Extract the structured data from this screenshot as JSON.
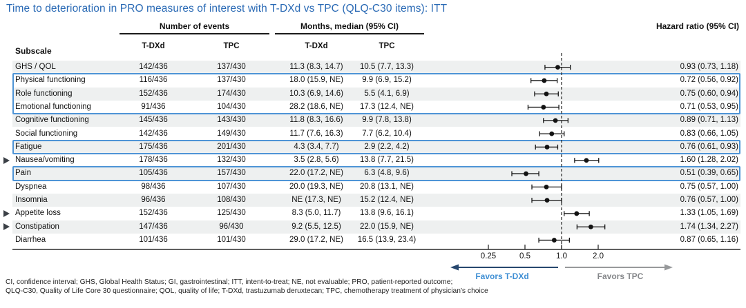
{
  "title": "Time to deterioration in PRO measures of interest with T-DXd vs TPC (QLQ-C30 items): ITT",
  "table": {
    "group_headers": {
      "events": "Number of events",
      "months": "Months, median (95% CI)",
      "hr": "Hazard ratio (95% CI)"
    },
    "subscale_header": "Subscale",
    "col_subheaders": [
      "T-DXd",
      "TPC",
      "T-DXd",
      "TPC"
    ],
    "rows": [
      {
        "name": "GHS / QOL",
        "events_tdxd": "142/436",
        "events_tpc": "137/430",
        "months_tdxd": "11.3 (8.3, 14.7)",
        "months_tpc": "10.5 (7.7, 13.3)",
        "hr_text": "0.93 (0.73, 1.18)",
        "flag": false
      },
      {
        "name": "Physical functioning",
        "events_tdxd": "116/436",
        "events_tpc": "137/430",
        "months_tdxd": "18.0 (15.9, NE)",
        "months_tpc": "9.9 (6.9, 15.2)",
        "hr_text": "0.72 (0.56, 0.92)",
        "flag": false
      },
      {
        "name": "Role functioning",
        "events_tdxd": "152/436",
        "events_tpc": "174/430",
        "months_tdxd": "10.3 (6.9, 14.6)",
        "months_tpc": "5.5 (4.1, 6.9)",
        "hr_text": "0.75 (0.60, 0.94)",
        "flag": false
      },
      {
        "name": "Emotional functioning",
        "events_tdxd": "91/436",
        "events_tpc": "104/430",
        "months_tdxd": "28.2 (18.6, NE)",
        "months_tpc": "17.3 (12.4, NE)",
        "hr_text": "0.71 (0.53, 0.95)",
        "flag": false
      },
      {
        "name": "Cognitive functioning",
        "events_tdxd": "145/436",
        "events_tpc": "143/430",
        "months_tdxd": "11.8 (8.3, 16.6)",
        "months_tpc": "9.9 (7.8, 13.8)",
        "hr_text": "0.89 (0.71, 1.13)",
        "flag": false
      },
      {
        "name": "Social functioning",
        "events_tdxd": "142/436",
        "events_tpc": "149/430",
        "months_tdxd": "11.7 (7.6, 16.3)",
        "months_tpc": "7.7 (6.2, 10.4)",
        "hr_text": "0.83 (0.66, 1.05)",
        "flag": false
      },
      {
        "name": "Fatigue",
        "events_tdxd": "175/436",
        "events_tpc": "201/430",
        "months_tdxd": "4.3 (3.4, 7.7)",
        "months_tpc": "2.9 (2.2, 4.2)",
        "hr_text": "0.76 (0.61, 0.93)",
        "flag": false
      },
      {
        "name": "Nausea/vomiting",
        "events_tdxd": "178/436",
        "events_tpc": "132/430",
        "months_tdxd": "3.5 (2.8, 5.6)",
        "months_tpc": "13.8 (7.7, 21.5)",
        "hr_text": "1.60 (1.28, 2.02)",
        "flag": true
      },
      {
        "name": "Pain",
        "events_tdxd": "105/436",
        "events_tpc": "157/430",
        "months_tdxd": "22.0 (17.2, NE)",
        "months_tpc": "6.3 (4.8, 9.6)",
        "hr_text": "0.51 (0.39, 0.65)",
        "flag": false
      },
      {
        "name": "Dyspnea",
        "events_tdxd": "98/436",
        "events_tpc": "107/430",
        "months_tdxd": "20.0 (19.3, NE)",
        "months_tpc": "20.8 (13.1, NE)",
        "hr_text": "0.75 (0.57, 1.00)",
        "flag": false
      },
      {
        "name": "Insomnia",
        "events_tdxd": "96/436",
        "events_tpc": "108/430",
        "months_tdxd": "NE (17.3, NE)",
        "months_tpc": "15.2 (12.4, NE)",
        "hr_text": "0.76 (0.57, 1.00)",
        "flag": false
      },
      {
        "name": "Appetite loss",
        "events_tdxd": "152/436",
        "events_tpc": "125/430",
        "months_tdxd": "8.3 (5.0, 11.7)",
        "months_tpc": "13.8 (9.6, 16.1)",
        "hr_text": "1.33 (1.05, 1.69)",
        "flag": true
      },
      {
        "name": "Constipation",
        "events_tdxd": "147/436",
        "events_tpc": "96/430",
        "months_tdxd": "9.2 (5.5, 12.5)",
        "months_tpc": "22.0 (15.9, NE)",
        "hr_text": "1.74 (1.34, 2.27)",
        "flag": true
      },
      {
        "name": "Diarrhea",
        "events_tdxd": "101/436",
        "events_tpc": "101/430",
        "months_tdxd": "29.0 (17.2, NE)",
        "months_tpc": "16.5 (13.9, 23.4)",
        "hr_text": "0.87 (0.65, 1.16)",
        "flag": false
      }
    ],
    "highlight_row_groups": [
      [
        1,
        3
      ],
      [
        6,
        6
      ],
      [
        8,
        8
      ]
    ]
  },
  "chart_data": {
    "type": "scatter",
    "variant": "forest-plot",
    "x_scale": "log2",
    "reference_line": 1.0,
    "xlabel": "Hazard ratio (95% CI)",
    "tick_labels": [
      "0.25",
      "0.5",
      "1.0",
      "2.0"
    ],
    "points": [
      {
        "subscale": "GHS / QOL",
        "hr": 0.93,
        "ci_low": 0.73,
        "ci_high": 1.18
      },
      {
        "subscale": "Physical functioning",
        "hr": 0.72,
        "ci_low": 0.56,
        "ci_high": 0.92
      },
      {
        "subscale": "Role functioning",
        "hr": 0.75,
        "ci_low": 0.6,
        "ci_high": 0.94
      },
      {
        "subscale": "Emotional functioning",
        "hr": 0.71,
        "ci_low": 0.53,
        "ci_high": 0.95
      },
      {
        "subscale": "Cognitive functioning",
        "hr": 0.89,
        "ci_low": 0.71,
        "ci_high": 1.13
      },
      {
        "subscale": "Social functioning",
        "hr": 0.83,
        "ci_low": 0.66,
        "ci_high": 1.05
      },
      {
        "subscale": "Fatigue",
        "hr": 0.76,
        "ci_low": 0.61,
        "ci_high": 0.93
      },
      {
        "subscale": "Nausea/vomiting",
        "hr": 1.6,
        "ci_low": 1.28,
        "ci_high": 2.02
      },
      {
        "subscale": "Pain",
        "hr": 0.51,
        "ci_low": 0.39,
        "ci_high": 0.65
      },
      {
        "subscale": "Dyspnea",
        "hr": 0.75,
        "ci_low": 0.57,
        "ci_high": 1.0
      },
      {
        "subscale": "Insomnia",
        "hr": 0.76,
        "ci_low": 0.57,
        "ci_high": 1.0
      },
      {
        "subscale": "Appetite loss",
        "hr": 1.33,
        "ci_low": 1.05,
        "ci_high": 1.69
      },
      {
        "subscale": "Constipation",
        "hr": 1.74,
        "ci_low": 1.34,
        "ci_high": 2.27
      },
      {
        "subscale": "Diarrhea",
        "hr": 0.87,
        "ci_low": 0.65,
        "ci_high": 1.16
      }
    ]
  },
  "axis": {
    "favors_left": "Favors T-DXd",
    "favors_right": "Favors TPC"
  },
  "footnotes": [
    "CI, confidence interval; GHS, Global Health Status; GI, gastrointestinal; ITT, intent-to-treat; NE, not evaluable; PRO, patient-reported outcome;",
    "QLQ-C30, Quality of Life Core 30 questionnaire; QOL, quality of life; T-DXd, trastuzumab deruxtecan; TPC, chemotherapy treatment of physician's choice"
  ],
  "colors": {
    "title_blue": "#2a6ab5",
    "highlight_box_blue": "#4e94d6",
    "favors_tdxd_blue": "#3f8fd4",
    "left_arrow_navy": "#27476e",
    "right_arrow_gray": "#97999b",
    "zebra_gray": "#eef0f0",
    "marker_black": "#121212"
  }
}
